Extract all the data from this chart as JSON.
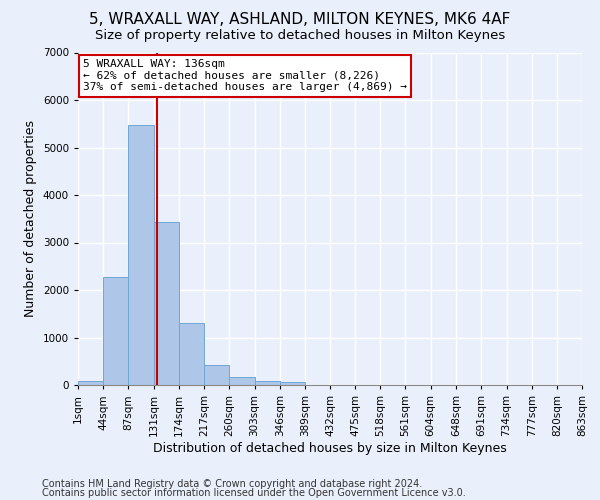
{
  "title": "5, WRAXALL WAY, ASHLAND, MILTON KEYNES, MK6 4AF",
  "subtitle": "Size of property relative to detached houses in Milton Keynes",
  "xlabel": "Distribution of detached houses by size in Milton Keynes",
  "ylabel": "Number of detached properties",
  "footnote1": "Contains HM Land Registry data © Crown copyright and database right 2024.",
  "footnote2": "Contains public sector information licensed under the Open Government Licence v3.0.",
  "annotation_title": "5 WRAXALL WAY: 136sqm",
  "annotation_line1": "← 62% of detached houses are smaller (8,226)",
  "annotation_line2": "37% of semi-detached houses are larger (4,869) →",
  "property_size_sqm": 136,
  "bin_edges": [
    1,
    44,
    87,
    131,
    174,
    217,
    260,
    303,
    346,
    389,
    432,
    475,
    518,
    561,
    604,
    648,
    691,
    734,
    777,
    820,
    863
  ],
  "bin_labels": [
    "1sqm",
    "44sqm",
    "87sqm",
    "131sqm",
    "174sqm",
    "217sqm",
    "260sqm",
    "303sqm",
    "346sqm",
    "389sqm",
    "432sqm",
    "475sqm",
    "518sqm",
    "561sqm",
    "604sqm",
    "648sqm",
    "691sqm",
    "734sqm",
    "777sqm",
    "820sqm",
    "863sqm"
  ],
  "bar_heights": [
    80,
    2280,
    5480,
    3440,
    1310,
    430,
    165,
    90,
    60,
    0,
    0,
    0,
    0,
    0,
    0,
    0,
    0,
    0,
    0,
    0
  ],
  "bar_color": "#aec6e8",
  "bar_edge_color": "#6fa8d4",
  "bg_color": "#eaf0fb",
  "annotation_box_color": "#ffffff",
  "annotation_box_edge": "#cc0000",
  "vline_color": "#cc0000",
  "ylim": [
    0,
    7000
  ],
  "grid_color": "#ffffff",
  "title_fontsize": 11,
  "subtitle_fontsize": 9.5,
  "label_fontsize": 9,
  "tick_fontsize": 7.5,
  "footnote_fontsize": 7
}
